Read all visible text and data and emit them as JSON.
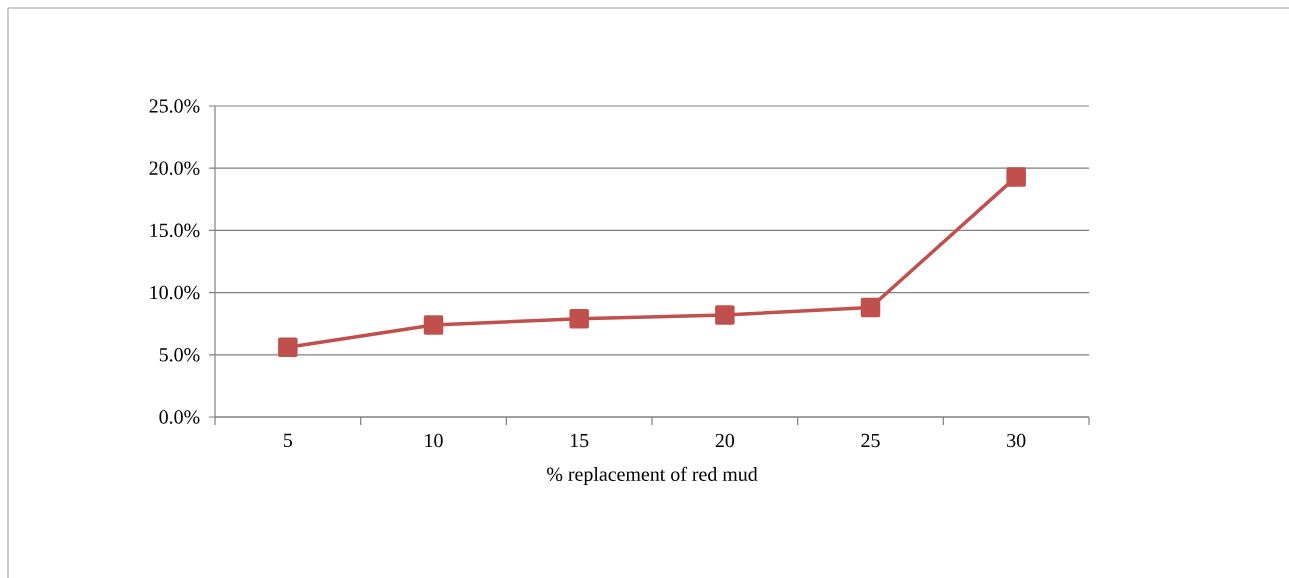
{
  "chart_data": {
    "type": "line",
    "xlabel": "% replacement of red mud",
    "categories": [
      "5",
      "10",
      "15",
      "20",
      "25",
      "30"
    ],
    "series": [
      {
        "color": "#c0504d",
        "values": [
          5.6,
          7.4,
          7.9,
          8.2,
          8.8,
          19.3
        ]
      }
    ],
    "ylim": [
      0,
      25
    ],
    "yticks": [
      {
        "value": 0,
        "label": "0.0%"
      },
      {
        "value": 5,
        "label": "5.0%"
      },
      {
        "value": 10,
        "label": "10.0%"
      },
      {
        "value": 15,
        "label": "15.0%"
      },
      {
        "value": 20,
        "label": "20.0%"
      },
      {
        "value": 25,
        "label": "25.0%"
      }
    ],
    "grid": "y",
    "marker": "square",
    "line_style": "solid"
  }
}
